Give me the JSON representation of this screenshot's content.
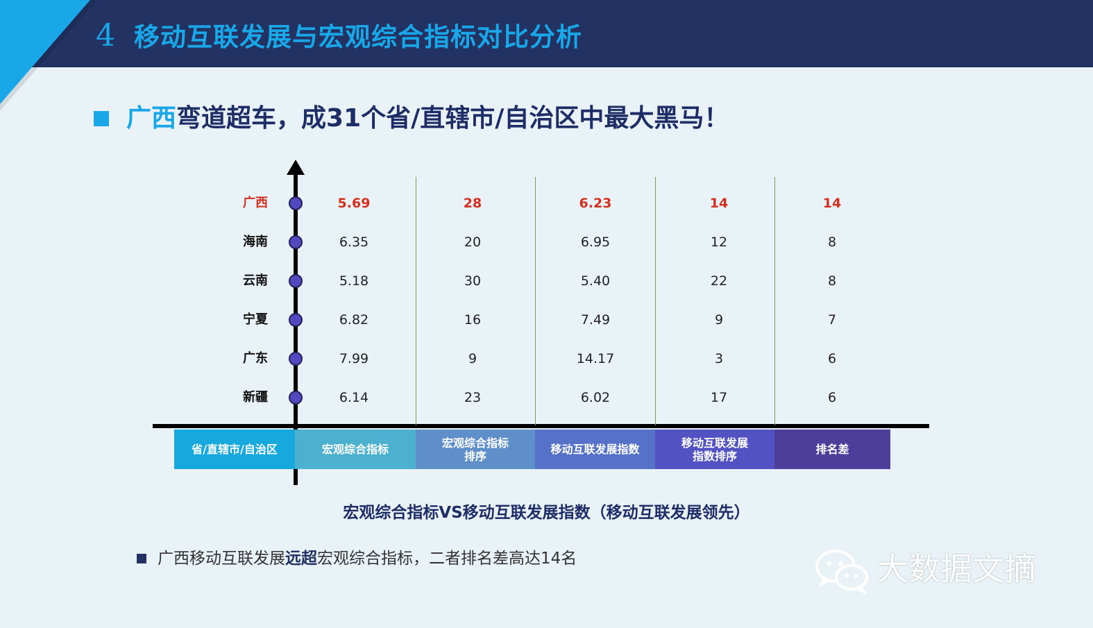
{
  "header": {
    "number": "4",
    "title": "移动互联发展与宏观综合指标对比分析"
  },
  "subtitle": {
    "highlight": "广西",
    "rest": "弯道超车，成31个省/直辖市/自治区中最大黑马！"
  },
  "colors": {
    "header_bg": "#213263",
    "accent": "#1aa7e8",
    "highlight_red": "#d32f1f"
  },
  "table": {
    "columns": [
      "省/直辖市/自治区",
      "宏观综合指标",
      "宏观综合指标排序",
      "移动互联发展指数",
      "移动互联发展指数排序",
      "排名差"
    ],
    "header_colors": [
      "#17a8de",
      "#4cb1cf",
      "#5f8fc9",
      "#5672c8",
      "#5352c3",
      "#4d3e9b"
    ],
    "rows": [
      {
        "province": "广西",
        "values": [
          "5.69",
          "28",
          "6.23",
          "14",
          "14"
        ],
        "highlight": true
      },
      {
        "province": "海南",
        "values": [
          "6.35",
          "20",
          "6.95",
          "12",
          "8"
        ],
        "highlight": false
      },
      {
        "province": "云南",
        "values": [
          "5.18",
          "30",
          "5.40",
          "22",
          "8"
        ],
        "highlight": false
      },
      {
        "province": "宁夏",
        "values": [
          "6.82",
          "16",
          "7.49",
          "9",
          "7"
        ],
        "highlight": false
      },
      {
        "province": "广东",
        "values": [
          "7.99",
          "9",
          "14.17",
          "3",
          "6"
        ],
        "highlight": false
      },
      {
        "province": "新疆",
        "values": [
          "6.14",
          "23",
          "6.02",
          "17",
          "6"
        ],
        "highlight": false
      }
    ]
  },
  "caption": "宏观综合指标VS移动互联发展指数（移动互联发展领先）",
  "note": {
    "part1": "广西移动互联发展",
    "bold": "远超",
    "part2": "宏观综合指标，二者排名差高达14名"
  },
  "watermark": {
    "text": "大数据文摘",
    "icon": "wechat-icon"
  }
}
